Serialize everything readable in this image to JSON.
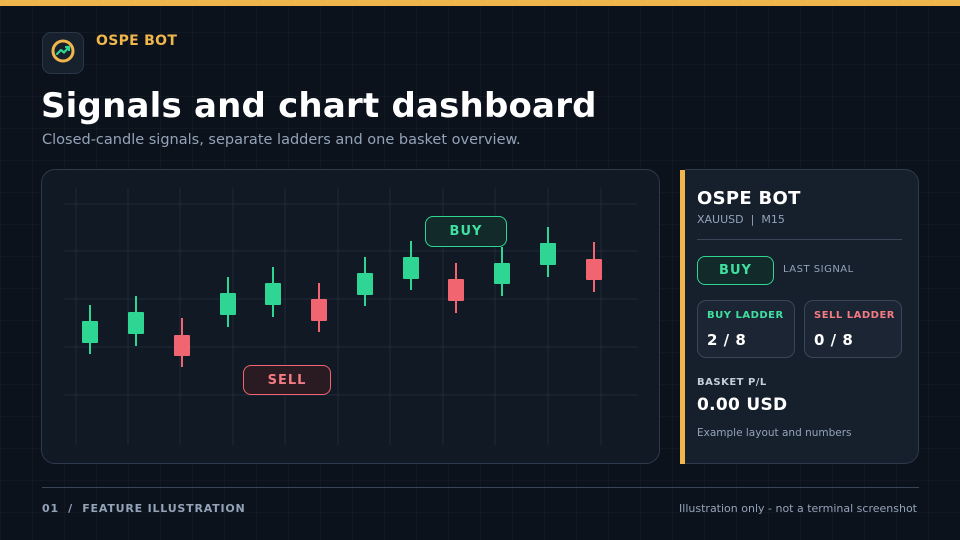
{
  "header": {
    "brand": "OSPE BOT",
    "logo_icon": "trend-up-coin-icon",
    "title": "Signals and chart dashboard",
    "subtitle": "Closed-candle signals, separate ladders and one basket overview."
  },
  "colors": {
    "accent": "#f0b64c",
    "buy": "#2fd693",
    "sell": "#f06570",
    "background": "#0c121c",
    "card": "#111925"
  },
  "chart": {
    "signals": [
      {
        "label": "BUY",
        "type": "buy"
      },
      {
        "label": "SELL",
        "type": "sell"
      }
    ],
    "candles": [
      {
        "direction": "up"
      },
      {
        "direction": "up"
      },
      {
        "direction": "down"
      },
      {
        "direction": "up"
      },
      {
        "direction": "up"
      },
      {
        "direction": "down"
      },
      {
        "direction": "up"
      },
      {
        "direction": "up"
      },
      {
        "direction": "down"
      },
      {
        "direction": "up"
      },
      {
        "direction": "up"
      },
      {
        "direction": "down"
      }
    ]
  },
  "panel": {
    "title": "OSPE BOT",
    "symbol": "XAUUSD",
    "timeframe": "M15",
    "last_signal_value": "BUY",
    "last_signal_label": "LAST SIGNAL",
    "buy_ladder": {
      "label": "BUY LADDER",
      "value": "2 / 8"
    },
    "sell_ladder": {
      "label": "SELL LADDER",
      "value": "0 / 8"
    },
    "basket": {
      "label": "BASKET P/L",
      "value": "0.00 USD"
    },
    "note": "Example layout and numbers"
  },
  "footer": {
    "left": "01  /  FEATURE ILLUSTRATION",
    "right": "Illustration only - not a terminal screenshot"
  }
}
